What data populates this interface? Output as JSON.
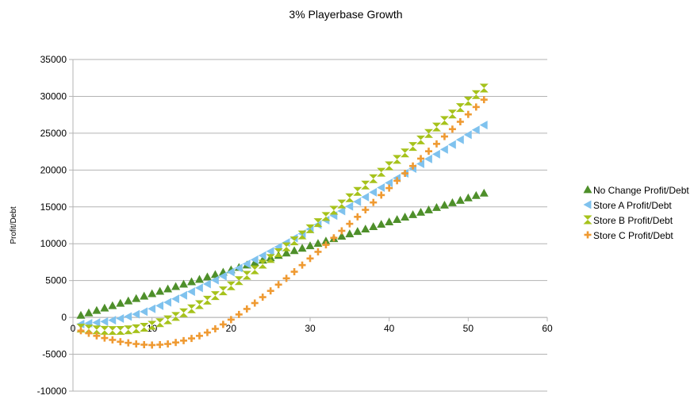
{
  "chart_data": {
    "type": "scatter",
    "title": "3% Playerbase Growth",
    "xlabel": "",
    "ylabel": "Profit/Debt",
    "xlim": [
      0,
      60
    ],
    "ylim": [
      -10000,
      35000
    ],
    "x_ticks": [
      "0",
      "10",
      "20",
      "30",
      "40",
      "50",
      "60"
    ],
    "y_ticks": [
      "-10000",
      "-5000",
      "0",
      "5000",
      "10000",
      "15000",
      "20000",
      "25000",
      "30000",
      "35000"
    ],
    "grid": "horizontal",
    "legend": "right",
    "x": [
      1,
      2,
      3,
      4,
      5,
      6,
      7,
      8,
      9,
      10,
      11,
      12,
      13,
      14,
      15,
      16,
      17,
      18,
      19,
      20,
      21,
      22,
      23,
      24,
      25,
      26,
      27,
      28,
      29,
      30,
      31,
      32,
      33,
      34,
      35,
      36,
      37,
      38,
      39,
      40,
      41,
      42,
      43,
      44,
      45,
      46,
      47,
      48,
      49,
      50,
      51,
      52
    ],
    "series": [
      {
        "name": "No Change Profit/Debt",
        "color": "#4e8f2a",
        "marker": "triangle-up",
        "values": [
          300,
          625,
          950,
          1275,
          1600,
          1925,
          2250,
          2575,
          2900,
          3225,
          3550,
          3875,
          4200,
          4525,
          4850,
          5175,
          5500,
          5825,
          6150,
          6475,
          6800,
          7125,
          7450,
          7775,
          8100,
          8425,
          8750,
          9075,
          9400,
          9725,
          10050,
          10375,
          10700,
          11025,
          11350,
          11675,
          12000,
          12325,
          12650,
          12975,
          13300,
          13625,
          13950,
          14275,
          14600,
          14925,
          15250,
          15575,
          15900,
          16225,
          16550,
          16875
        ]
      },
      {
        "name": "Store A Profit/Debt",
        "color": "#7fc2ee",
        "marker": "triangle-left",
        "values": [
          -900,
          -800,
          -700,
          -560,
          -380,
          -150,
          120,
          430,
          780,
          1170,
          1590,
          2040,
          2510,
          3000,
          3500,
          4010,
          4530,
          5060,
          5600,
          6150,
          6700,
          7260,
          7830,
          8400,
          8980,
          9570,
          10160,
          10760,
          11360,
          11970,
          12580,
          13200,
          13820,
          14440,
          15070,
          15700,
          16340,
          16980,
          17620,
          18260,
          18900,
          19550,
          20200,
          20850,
          21500,
          22150,
          22800,
          23460,
          24120,
          24780,
          25440,
          26100
        ]
      },
      {
        "name": "Store B Profit/Debt",
        "color": "#a6c21b",
        "marker": "hourglass",
        "values": [
          -1450,
          -1580,
          -1680,
          -1750,
          -1780,
          -1760,
          -1680,
          -1540,
          -1330,
          -1060,
          -720,
          -320,
          130,
          630,
          1170,
          1740,
          2340,
          2960,
          3610,
          4290,
          4990,
          5720,
          6460,
          7220,
          7990,
          8780,
          9580,
          10390,
          11200,
          12030,
          12860,
          13700,
          14540,
          15390,
          16240,
          17100,
          17960,
          18830,
          19700,
          20570,
          21450,
          22330,
          23200,
          24080,
          24960,
          25840,
          26720,
          27600,
          28480,
          29360,
          30240,
          31120
        ]
      },
      {
        "name": "Store C Profit/Debt",
        "color": "#ef9a32",
        "marker": "plus",
        "values": [
          -1800,
          -2150,
          -2500,
          -2800,
          -3050,
          -3300,
          -3450,
          -3600,
          -3700,
          -3750,
          -3700,
          -3600,
          -3400,
          -3150,
          -2850,
          -2500,
          -2050,
          -1550,
          -950,
          -300,
          400,
          1150,
          1950,
          2750,
          3600,
          4450,
          5300,
          6200,
          7100,
          8000,
          8900,
          9850,
          10800,
          11750,
          12700,
          13650,
          14600,
          15600,
          16600,
          17550,
          18550,
          19550,
          20550,
          21550,
          22550,
          23550,
          24550,
          25550,
          26550,
          27550,
          28550,
          29550
        ]
      }
    ]
  }
}
